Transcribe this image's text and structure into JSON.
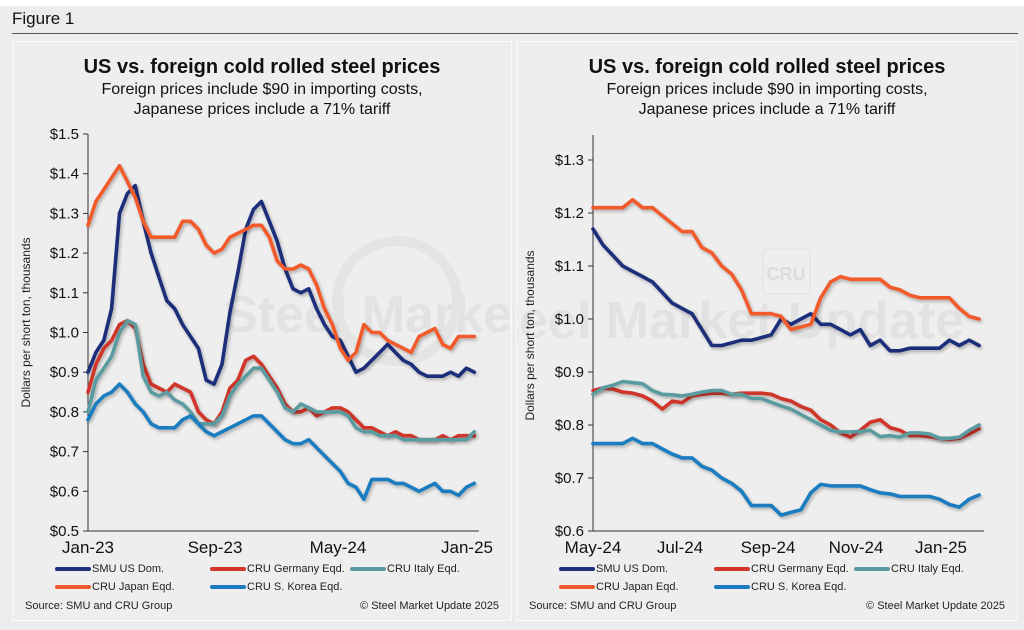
{
  "figure_label": "Figure 1",
  "chart_data": [
    {
      "type": "line",
      "title": "US vs. foreign cold rolled steel prices",
      "subtitle_lines": [
        "Foreign prices include $90 in importing costs,",
        "Japanese prices include a 71% tariff"
      ],
      "ylabel": "Dollars per short ton, thousands",
      "xlabel": "",
      "ylim": [
        0.5,
        1.5
      ],
      "y_ticks": [
        0.5,
        0.6,
        0.7,
        0.8,
        0.9,
        1.0,
        1.1,
        1.2,
        1.3,
        1.4,
        1.5
      ],
      "y_tick_labels": [
        "$0.5",
        "$0.6",
        "$0.7",
        "$0.8",
        "$0.9",
        "$1.0",
        "$1.1",
        "$1.2",
        "$1.3",
        "$1.4",
        "$1.5"
      ],
      "x_unit": "months since Jan-23",
      "xlim": [
        0,
        24.8
      ],
      "x_ticks": [
        0,
        8,
        16,
        24
      ],
      "x_tick_labels": [
        "Jan-23",
        "Sep-23",
        "May-24",
        "Jan-25"
      ],
      "grid": false,
      "legend_position": "bottom",
      "series": [
        {
          "name": "SMU US Dom.",
          "color": "#1f2f7a",
          "x": [
            0,
            0.5,
            1,
            1.5,
            2,
            2.5,
            3,
            3.5,
            4,
            4.5,
            5,
            5.5,
            6,
            6.5,
            7,
            7.5,
            8,
            8.5,
            9,
            9.5,
            10,
            10.5,
            11,
            11.5,
            12,
            12.5,
            13,
            13.5,
            14,
            14.5,
            15,
            15.5,
            16,
            16.5,
            17,
            17.5,
            18,
            18.5,
            19,
            19.5,
            20,
            20.5,
            21,
            21.5,
            22,
            22.5,
            23,
            23.5,
            24,
            24.5
          ],
          "values": [
            0.9,
            0.95,
            0.98,
            1.06,
            1.3,
            1.35,
            1.37,
            1.28,
            1.2,
            1.14,
            1.08,
            1.06,
            1.02,
            0.99,
            0.96,
            0.88,
            0.87,
            0.92,
            1.05,
            1.15,
            1.26,
            1.31,
            1.33,
            1.28,
            1.23,
            1.16,
            1.11,
            1.1,
            1.11,
            1.06,
            1.02,
            0.99,
            0.98,
            0.94,
            0.9,
            0.91,
            0.93,
            0.95,
            0.97,
            0.95,
            0.93,
            0.92,
            0.9,
            0.89,
            0.89,
            0.89,
            0.9,
            0.89,
            0.91,
            0.9
          ]
        },
        {
          "name": "CRU Germany Eqd.",
          "color": "#d0362a",
          "x": [
            0,
            0.5,
            1,
            1.5,
            2,
            2.5,
            3,
            3.5,
            4,
            4.5,
            5,
            5.5,
            6,
            6.5,
            7,
            7.5,
            8,
            8.5,
            9,
            9.5,
            10,
            10.5,
            11,
            11.5,
            12,
            12.5,
            13,
            13.5,
            14,
            14.5,
            15,
            15.5,
            16,
            16.5,
            17,
            17.5,
            18,
            18.5,
            19,
            19.5,
            20,
            20.5,
            21,
            21.5,
            22,
            22.5,
            23,
            23.5,
            24,
            24.5
          ],
          "values": [
            0.85,
            0.92,
            0.96,
            0.98,
            1.02,
            1.03,
            1.01,
            0.92,
            0.87,
            0.86,
            0.85,
            0.87,
            0.86,
            0.85,
            0.8,
            0.78,
            0.77,
            0.8,
            0.86,
            0.88,
            0.93,
            0.94,
            0.92,
            0.89,
            0.86,
            0.82,
            0.8,
            0.8,
            0.81,
            0.79,
            0.8,
            0.81,
            0.81,
            0.8,
            0.78,
            0.76,
            0.76,
            0.75,
            0.74,
            0.75,
            0.74,
            0.74,
            0.73,
            0.73,
            0.73,
            0.74,
            0.73,
            0.74,
            0.74,
            0.74
          ]
        },
        {
          "name": "CRU Italy Eqd.",
          "color": "#5a9ba0",
          "x": [
            0,
            0.5,
            1,
            1.5,
            2,
            2.5,
            3,
            3.5,
            4,
            4.5,
            5,
            5.5,
            6,
            6.5,
            7,
            7.5,
            8,
            8.5,
            9,
            9.5,
            10,
            10.5,
            11,
            11.5,
            12,
            12.5,
            13,
            13.5,
            14,
            14.5,
            15,
            15.5,
            16,
            16.5,
            17,
            17.5,
            18,
            18.5,
            19,
            19.5,
            20,
            20.5,
            21,
            21.5,
            22,
            22.5,
            23,
            23.5,
            24,
            24.5
          ],
          "values": [
            0.8,
            0.88,
            0.91,
            0.94,
            1.0,
            1.03,
            1.02,
            0.89,
            0.85,
            0.84,
            0.85,
            0.83,
            0.82,
            0.8,
            0.77,
            0.77,
            0.77,
            0.79,
            0.84,
            0.87,
            0.89,
            0.91,
            0.91,
            0.88,
            0.85,
            0.81,
            0.8,
            0.82,
            0.81,
            0.8,
            0.8,
            0.8,
            0.8,
            0.79,
            0.76,
            0.75,
            0.75,
            0.74,
            0.74,
            0.74,
            0.73,
            0.73,
            0.73,
            0.73,
            0.73,
            0.73,
            0.73,
            0.73,
            0.73,
            0.75
          ]
        },
        {
          "name": "CRU Japan Eqd.",
          "color": "#f15a2b",
          "x": [
            0,
            0.5,
            1,
            1.5,
            2,
            2.5,
            3,
            3.5,
            4,
            4.5,
            5,
            5.5,
            6,
            6.5,
            7,
            7.5,
            8,
            8.5,
            9,
            9.5,
            10,
            10.5,
            11,
            11.5,
            12,
            12.5,
            13,
            13.5,
            14,
            14.5,
            15,
            15.5,
            16,
            16.5,
            17,
            17.5,
            18,
            18.5,
            19,
            19.5,
            20,
            20.5,
            21,
            21.5,
            22,
            22.5,
            23,
            23.5,
            24,
            24.5
          ],
          "values": [
            1.27,
            1.33,
            1.36,
            1.39,
            1.42,
            1.38,
            1.34,
            1.28,
            1.24,
            1.24,
            1.24,
            1.24,
            1.28,
            1.28,
            1.26,
            1.22,
            1.2,
            1.21,
            1.24,
            1.25,
            1.26,
            1.27,
            1.27,
            1.24,
            1.18,
            1.16,
            1.16,
            1.17,
            1.16,
            1.12,
            1.06,
            1.02,
            0.96,
            0.93,
            0.95,
            1.02,
            1.0,
            1.0,
            0.98,
            0.97,
            0.96,
            0.95,
            0.99,
            1.0,
            1.01,
            0.97,
            0.96,
            0.99,
            0.99,
            0.99
          ]
        },
        {
          "name": "CRU S. Korea Eqd.",
          "color": "#1a7bc0",
          "x": [
            0,
            0.5,
            1,
            1.5,
            2,
            2.5,
            3,
            3.5,
            4,
            4.5,
            5,
            5.5,
            6,
            6.5,
            7,
            7.5,
            8,
            8.5,
            9,
            9.5,
            10,
            10.5,
            11,
            11.5,
            12,
            12.5,
            13,
            13.5,
            14,
            14.5,
            15,
            15.5,
            16,
            16.5,
            17,
            17.5,
            18,
            18.5,
            19,
            19.5,
            20,
            20.5,
            21,
            21.5,
            22,
            22.5,
            23,
            23.5,
            24,
            24.5
          ],
          "values": [
            0.78,
            0.82,
            0.84,
            0.85,
            0.87,
            0.85,
            0.82,
            0.8,
            0.77,
            0.76,
            0.76,
            0.76,
            0.78,
            0.79,
            0.77,
            0.75,
            0.74,
            0.75,
            0.76,
            0.77,
            0.78,
            0.79,
            0.79,
            0.77,
            0.75,
            0.73,
            0.72,
            0.72,
            0.73,
            0.71,
            0.69,
            0.67,
            0.65,
            0.62,
            0.61,
            0.58,
            0.63,
            0.63,
            0.63,
            0.62,
            0.62,
            0.61,
            0.6,
            0.61,
            0.62,
            0.6,
            0.6,
            0.59,
            0.61,
            0.62
          ]
        }
      ],
      "watermark": "Steel Market Update",
      "source": "Source: SMU and CRU Group",
      "copyright": "© Steel Market Update 2025"
    },
    {
      "type": "line",
      "title": "US vs. foreign cold rolled steel prices",
      "subtitle_lines": [
        "Foreign prices include $90 in importing costs,",
        "Japanese prices include a 71% tariff"
      ],
      "ylabel": "Dollars per short ton, thousands",
      "xlabel": "",
      "ylim": [
        0.6,
        1.35
      ],
      "y_ticks": [
        0.6,
        0.7,
        0.8,
        0.9,
        1.0,
        1.1,
        1.2,
        1.3
      ],
      "y_tick_labels": [
        "$0.6",
        "$0.7",
        "$0.8",
        "$0.9",
        "$1.0",
        "$1.1",
        "$1.2",
        "$1.3"
      ],
      "x_unit": "weeks since May-24",
      "xlim": [
        0,
        39.5
      ],
      "x_ticks": [
        0,
        8.7,
        17.5,
        26.4,
        35
      ],
      "x_tick_labels": [
        "May-24",
        "Jul-24",
        "Sep-24",
        "Nov-24",
        "Jan-25"
      ],
      "grid": false,
      "legend_position": "bottom",
      "series": [
        {
          "name": "SMU US Dom.",
          "color": "#1f2f7a",
          "x": [
            0,
            1,
            2,
            3,
            4,
            5,
            6,
            7,
            8,
            9,
            10,
            11,
            12,
            13,
            14,
            15,
            16,
            17,
            18,
            19,
            20,
            21,
            22,
            23,
            24,
            25,
            26,
            27,
            28,
            29,
            30,
            31,
            32,
            33,
            34,
            35,
            36,
            37,
            38,
            39
          ],
          "values": [
            1.17,
            1.14,
            1.12,
            1.1,
            1.09,
            1.08,
            1.07,
            1.05,
            1.03,
            1.02,
            1.01,
            0.98,
            0.95,
            0.95,
            0.955,
            0.96,
            0.96,
            0.965,
            0.97,
            1.0,
            0.99,
            1.0,
            1.01,
            0.99,
            0.99,
            0.98,
            0.97,
            0.98,
            0.95,
            0.96,
            0.94,
            0.94,
            0.945,
            0.945,
            0.945,
            0.945,
            0.96,
            0.95,
            0.96,
            0.95
          ]
        },
        {
          "name": "CRU Germany Eqd.",
          "color": "#d0362a",
          "x": [
            0,
            1,
            2,
            3,
            4,
            5,
            6,
            7,
            8,
            9,
            10,
            11,
            12,
            13,
            14,
            15,
            16,
            17,
            18,
            19,
            20,
            21,
            22,
            23,
            24,
            25,
            26,
            27,
            28,
            29,
            30,
            31,
            32,
            33,
            34,
            35,
            36,
            37,
            38,
            39
          ],
          "values": [
            0.865,
            0.87,
            0.868,
            0.862,
            0.86,
            0.855,
            0.845,
            0.83,
            0.845,
            0.842,
            0.855,
            0.858,
            0.86,
            0.86,
            0.858,
            0.86,
            0.86,
            0.86,
            0.858,
            0.85,
            0.845,
            0.835,
            0.828,
            0.81,
            0.8,
            0.785,
            0.777,
            0.79,
            0.805,
            0.81,
            0.795,
            0.79,
            0.78,
            0.78,
            0.778,
            0.775,
            0.773,
            0.775,
            0.783,
            0.793
          ]
        },
        {
          "name": "CRU Italy Eqd.",
          "color": "#5a9ba0",
          "x": [
            0,
            1,
            2,
            3,
            4,
            5,
            6,
            7,
            8,
            9,
            10,
            11,
            12,
            13,
            14,
            15,
            16,
            17,
            18,
            19,
            20,
            21,
            22,
            23,
            24,
            25,
            26,
            27,
            28,
            29,
            30,
            31,
            32,
            33,
            34,
            35,
            36,
            37,
            38,
            39
          ],
          "values": [
            0.858,
            0.87,
            0.875,
            0.882,
            0.88,
            0.878,
            0.865,
            0.858,
            0.857,
            0.855,
            0.858,
            0.862,
            0.865,
            0.865,
            0.858,
            0.858,
            0.85,
            0.85,
            0.843,
            0.836,
            0.83,
            0.82,
            0.81,
            0.8,
            0.79,
            0.787,
            0.787,
            0.788,
            0.79,
            0.778,
            0.78,
            0.777,
            0.785,
            0.785,
            0.783,
            0.775,
            0.775,
            0.777,
            0.79,
            0.8
          ]
        },
        {
          "name": "CRU Japan Eqd.",
          "color": "#f15a2b",
          "x": [
            0,
            1,
            2,
            3,
            4,
            5,
            6,
            7,
            8,
            9,
            10,
            11,
            12,
            13,
            14,
            15,
            16,
            17,
            18,
            19,
            20,
            21,
            22,
            23,
            24,
            25,
            26,
            27,
            28,
            29,
            30,
            31,
            32,
            33,
            34,
            35,
            36,
            37,
            38,
            39
          ],
          "values": [
            1.21,
            1.21,
            1.21,
            1.21,
            1.225,
            1.21,
            1.21,
            1.195,
            1.18,
            1.165,
            1.165,
            1.135,
            1.125,
            1.1,
            1.085,
            1.055,
            1.01,
            1.01,
            1.01,
            1.005,
            0.98,
            0.985,
            0.99,
            1.04,
            1.07,
            1.08,
            1.075,
            1.075,
            1.075,
            1.075,
            1.06,
            1.055,
            1.045,
            1.04,
            1.04,
            1.04,
            1.04,
            1.02,
            1.005,
            1.0
          ]
        },
        {
          "name": "CRU S. Korea Eqd.",
          "color": "#1a7bc0",
          "x": [
            0,
            1,
            2,
            3,
            4,
            5,
            6,
            7,
            8,
            9,
            10,
            11,
            12,
            13,
            14,
            15,
            16,
            17,
            18,
            19,
            20,
            21,
            22,
            23,
            24,
            25,
            26,
            27,
            28,
            29,
            30,
            31,
            32,
            33,
            34,
            35,
            36,
            37,
            38,
            39
          ],
          "values": [
            0.765,
            0.765,
            0.765,
            0.765,
            0.775,
            0.765,
            0.765,
            0.755,
            0.745,
            0.738,
            0.738,
            0.722,
            0.715,
            0.7,
            0.69,
            0.675,
            0.648,
            0.648,
            0.648,
            0.63,
            0.635,
            0.64,
            0.672,
            0.688,
            0.685,
            0.685,
            0.685,
            0.685,
            0.678,
            0.672,
            0.67,
            0.665,
            0.665,
            0.665,
            0.665,
            0.66,
            0.65,
            0.645,
            0.66,
            0.668
          ]
        }
      ],
      "watermark": "Steel Market Update",
      "badge": "CRU",
      "source": "Source: SMU and CRU Group",
      "copyright": "© Steel Market Update 2025"
    }
  ]
}
